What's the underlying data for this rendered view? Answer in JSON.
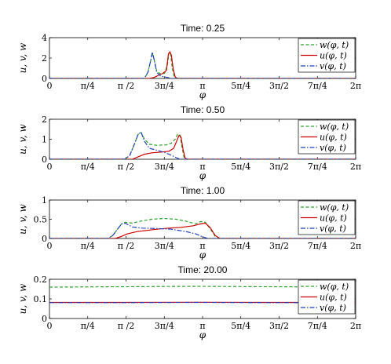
{
  "chart_data": [
    {
      "type": "line",
      "title": "Time: 0.25",
      "ylabel": "u, v, w",
      "xlabel": "φ",
      "xlim": [
        0,
        6.2832
      ],
      "ylim": [
        0,
        4
      ],
      "yticks": [
        0,
        2,
        4
      ],
      "xtick_labels": [
        "0",
        "π/4",
        "π /2",
        "3π/4",
        "π",
        "5π/4",
        "3π/2",
        "7π/4",
        "2π"
      ],
      "legend": [
        "w(φ, t)",
        "u(φ, t)",
        "v(φ, t)"
      ],
      "series": [
        {
          "name": "w(φ, t)",
          "color": "#2ca02c",
          "style": "dashed",
          "x": [
            0,
            1.95,
            2.02,
            2.08,
            2.11,
            2.15,
            2.2,
            2.28,
            2.36,
            2.42,
            2.45,
            2.48,
            2.52,
            2.56,
            2.6,
            6.2832
          ],
          "y": [
            0,
            0,
            0.6,
            1.8,
            2.5,
            1.8,
            0.7,
            0.45,
            0.5,
            1.3,
            2.5,
            2.6,
            1.0,
            0.15,
            0,
            0
          ]
        },
        {
          "name": "u(φ, t)",
          "color": "#cc0000",
          "style": "solid",
          "x": [
            0,
            2.05,
            2.15,
            2.25,
            2.33,
            2.4,
            2.44,
            2.47,
            2.5,
            2.54,
            2.58,
            2.62,
            6.2832
          ],
          "y": [
            0,
            0,
            0.1,
            0.35,
            0.5,
            0.8,
            2.4,
            2.6,
            2.3,
            0.9,
            0.15,
            0,
            0
          ]
        },
        {
          "name": "v(φ, t)",
          "color": "#1f3fbf",
          "style": "dashdot",
          "x": [
            0,
            1.95,
            2.02,
            2.08,
            2.11,
            2.15,
            2.2,
            2.28,
            2.36,
            2.42,
            2.46,
            2.5,
            6.2832
          ],
          "y": [
            0,
            0,
            0.6,
            1.8,
            2.6,
            1.8,
            0.6,
            0.25,
            0.15,
            0.1,
            0.05,
            0,
            0
          ]
        }
      ]
    },
    {
      "type": "line",
      "title": "Time: 0.50",
      "ylabel": "u, v, w",
      "xlabel": "φ",
      "xlim": [
        0,
        6.2832
      ],
      "ylim": [
        0,
        2
      ],
      "yticks": [
        0,
        1,
        2
      ],
      "xtick_labels": [
        "0",
        "π/4",
        "π /2",
        "3π/4",
        "π",
        "5π/4",
        "3π/2",
        "7π/4",
        "2π"
      ],
      "legend": [
        "w(φ, t)",
        "u(φ, t)",
        "v(φ, t)"
      ],
      "series": [
        {
          "name": "w(φ, t)",
          "color": "#2ca02c",
          "style": "dashed",
          "x": [
            0,
            1.55,
            1.65,
            1.75,
            1.82,
            1.88,
            1.95,
            2.05,
            2.2,
            2.4,
            2.5,
            2.58,
            2.63,
            2.68,
            2.72,
            2.76,
            2.8,
            6.2832
          ],
          "y": [
            0,
            0,
            0.2,
            0.8,
            1.25,
            1.35,
            1.0,
            0.75,
            0.7,
            0.72,
            0.8,
            1.0,
            1.25,
            1.2,
            0.6,
            0.1,
            0,
            0
          ]
        },
        {
          "name": "u(φ, t)",
          "color": "#cc0000",
          "style": "solid",
          "x": [
            0,
            1.7,
            1.8,
            1.95,
            2.1,
            2.3,
            2.45,
            2.55,
            2.6,
            2.66,
            2.7,
            2.74,
            2.78,
            2.82,
            6.2832
          ],
          "y": [
            0,
            0,
            0.1,
            0.25,
            0.32,
            0.36,
            0.4,
            0.55,
            0.85,
            1.2,
            1.1,
            0.5,
            0.08,
            0,
            0
          ]
        },
        {
          "name": "v(φ, t)",
          "color": "#1f3fbf",
          "style": "dashdot",
          "x": [
            0,
            1.55,
            1.65,
            1.75,
            1.82,
            1.88,
            1.95,
            2.05,
            2.2,
            2.35,
            2.5,
            2.6,
            2.68,
            6.2832
          ],
          "y": [
            0,
            0,
            0.2,
            0.8,
            1.25,
            1.35,
            0.9,
            0.55,
            0.45,
            0.35,
            0.2,
            0.08,
            0,
            0
          ]
        }
      ]
    },
    {
      "type": "line",
      "title": "Time: 1.00",
      "ylabel": "u, v, w",
      "xlabel": "φ",
      "xlim": [
        0,
        6.2832
      ],
      "ylim": [
        0,
        1
      ],
      "yticks": [
        0,
        0.5,
        1
      ],
      "xtick_labels": [
        "0",
        "π/4",
        "π /2",
        "3π/4",
        "π",
        "5π/4",
        "3π/2",
        "7π/4",
        "2π"
      ],
      "legend": [
        "w(φ, t)",
        "u(φ, t)",
        "v(φ, t)"
      ],
      "series": [
        {
          "name": "w(φ, t)",
          "color": "#2ca02c",
          "style": "dashed",
          "x": [
            0,
            1.2,
            1.3,
            1.4,
            1.48,
            1.55,
            1.7,
            1.9,
            2.1,
            2.35,
            2.6,
            2.8,
            3.0,
            3.1,
            3.2,
            3.3,
            3.4,
            3.5,
            6.2832
          ],
          "y": [
            0,
            0,
            0.08,
            0.25,
            0.38,
            0.42,
            0.4,
            0.46,
            0.5,
            0.52,
            0.5,
            0.45,
            0.38,
            0.44,
            0.42,
            0.25,
            0.06,
            0,
            0
          ]
        },
        {
          "name": "u(φ, t)",
          "color": "#cc0000",
          "style": "solid",
          "x": [
            0,
            1.35,
            1.45,
            1.6,
            1.8,
            2.0,
            2.2,
            2.45,
            2.7,
            2.95,
            3.1,
            3.2,
            3.3,
            3.4,
            3.5,
            6.2832
          ],
          "y": [
            0,
            0,
            0.04,
            0.12,
            0.18,
            0.21,
            0.24,
            0.27,
            0.29,
            0.33,
            0.38,
            0.4,
            0.28,
            0.08,
            0,
            0
          ]
        },
        {
          "name": "v(φ, t)",
          "color": "#1f3fbf",
          "style": "dashdot",
          "x": [
            0,
            1.2,
            1.3,
            1.4,
            1.48,
            1.55,
            1.7,
            1.9,
            2.2,
            2.5,
            2.8,
            3.0,
            3.15,
            3.25,
            6.2832
          ],
          "y": [
            0,
            0,
            0.08,
            0.25,
            0.38,
            0.4,
            0.3,
            0.27,
            0.26,
            0.24,
            0.18,
            0.12,
            0.04,
            0,
            0
          ]
        }
      ]
    },
    {
      "type": "line",
      "title": "Time: 20.00",
      "ylabel": "u, v, w",
      "xlabel": "φ",
      "xlim": [
        0,
        6.2832
      ],
      "ylim": [
        0,
        0.2
      ],
      "yticks": [
        0,
        0.1,
        0.2
      ],
      "xtick_labels": [
        "0",
        "π/4",
        "π /2",
        "3π/4",
        "π",
        "5π/4",
        "3π/2",
        "7π/4",
        "2π"
      ],
      "legend": [
        "w(φ, t)",
        "u(φ, t)",
        "v(φ, t)"
      ],
      "series": [
        {
          "name": "w(φ, t)",
          "color": "#2ca02c",
          "style": "dashed",
          "x": [
            0,
            1.5,
            3.0,
            4.5,
            6.2832
          ],
          "y": [
            0.16,
            0.162,
            0.164,
            0.162,
            0.16
          ]
        },
        {
          "name": "u(φ, t)",
          "color": "#cc0000",
          "style": "solid",
          "x": [
            0,
            1.5,
            3.0,
            4.5,
            6.2832
          ],
          "y": [
            0.082,
            0.082,
            0.083,
            0.082,
            0.082
          ]
        },
        {
          "name": "v(φ, t)",
          "color": "#1f3fbf",
          "style": "dashdot",
          "x": [
            0,
            1.5,
            3.0,
            4.5,
            6.2832
          ],
          "y": [
            0.081,
            0.081,
            0.082,
            0.081,
            0.081
          ]
        }
      ]
    }
  ]
}
